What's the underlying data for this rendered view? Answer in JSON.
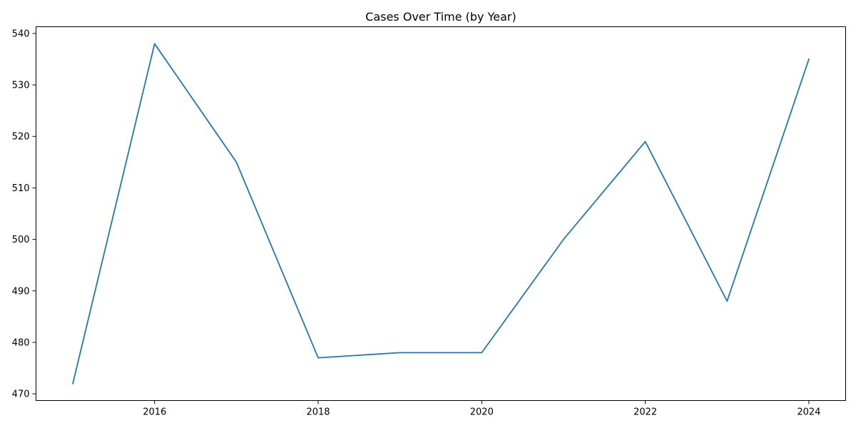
{
  "chart_data": {
    "type": "line",
    "title": "Cases Over Time (by Year)",
    "xlabel": "",
    "ylabel": "",
    "x": [
      2015,
      2016,
      2017,
      2018,
      2019,
      2020,
      2021,
      2022,
      2023,
      2024
    ],
    "series": [
      {
        "values": [
          472,
          538,
          515,
          477,
          478,
          478,
          500,
          519,
          488,
          535
        ],
        "color": "#1f77b4"
      }
    ],
    "xlim": [
      2014.55,
      2024.45
    ],
    "ylim": [
      468.7,
      541.3
    ],
    "xticks": [
      2016,
      2018,
      2020,
      2022,
      2024
    ],
    "xtick_labels": [
      "2016",
      "2018",
      "2020",
      "2022",
      "2024"
    ],
    "yticks": [
      470,
      480,
      490,
      500,
      510,
      520,
      530,
      540
    ],
    "ytick_labels": [
      "470",
      "480",
      "490",
      "500",
      "510",
      "520",
      "530",
      "540"
    ],
    "grid": false,
    "legend": "none"
  }
}
